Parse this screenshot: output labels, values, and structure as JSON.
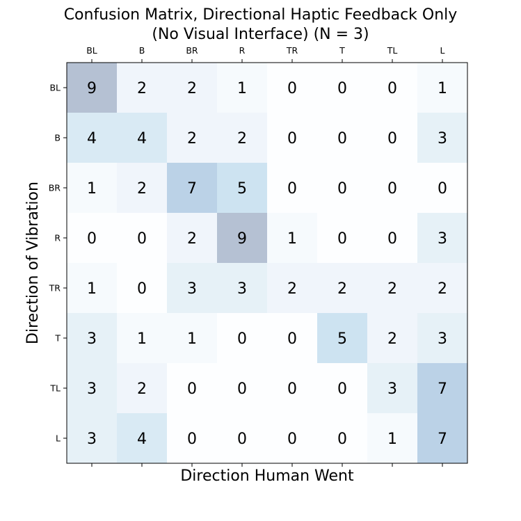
{
  "chart_data": {
    "type": "heatmap",
    "title_line1": "Confusion Matrix, Directional Haptic Feedback Only",
    "title_line2": "(No Visual Interface) (N = 3)",
    "xlabel": "Direction Human Went",
    "ylabel": "Direction of Vibration",
    "x_categories": [
      "BL",
      "B",
      "BR",
      "R",
      "TR",
      "T",
      "TL",
      "L"
    ],
    "y_categories": [
      "BL",
      "B",
      "BR",
      "R",
      "TR",
      "T",
      "TL",
      "L"
    ],
    "values": [
      [
        9,
        2,
        2,
        1,
        0,
        0,
        0,
        1
      ],
      [
        4,
        4,
        2,
        2,
        0,
        0,
        0,
        3
      ],
      [
        1,
        2,
        7,
        5,
        0,
        0,
        0,
        0
      ],
      [
        0,
        0,
        2,
        9,
        1,
        0,
        0,
        3
      ],
      [
        1,
        0,
        3,
        3,
        2,
        2,
        2,
        2
      ],
      [
        3,
        1,
        1,
        0,
        0,
        5,
        2,
        3
      ],
      [
        3,
        2,
        0,
        0,
        0,
        0,
        3,
        7
      ],
      [
        3,
        4,
        0,
        0,
        0,
        0,
        1,
        7
      ]
    ],
    "x_ticks_position": "top",
    "colormap": "Blues",
    "colormap_alpha": 0.3,
    "vmin": 0,
    "vmax": 9
  }
}
